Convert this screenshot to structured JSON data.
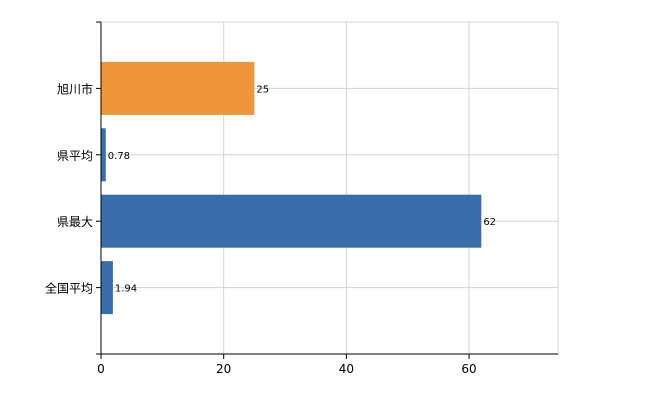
{
  "chart_data": {
    "type": "bar",
    "orientation": "horizontal",
    "categories": [
      "旭川市",
      "県平均",
      "県最大",
      "全国平均"
    ],
    "values": [
      25,
      0.78,
      62,
      1.94
    ],
    "value_labels": [
      "25",
      "0.78",
      "62",
      "1.94"
    ],
    "highlight_index": 0,
    "xlim": [
      0,
      74.5
    ],
    "x_ticks": [
      0,
      20,
      40,
      60
    ],
    "x_tick_labels": [
      "0",
      "20",
      "40",
      "60"
    ],
    "grid": true,
    "title": "",
    "xlabel": "",
    "ylabel": "",
    "colors": {
      "highlight": "#f0963a",
      "default": "#3a6dab",
      "grid": "#d4d4d4",
      "axis": "#000000",
      "text": "#000000"
    }
  }
}
